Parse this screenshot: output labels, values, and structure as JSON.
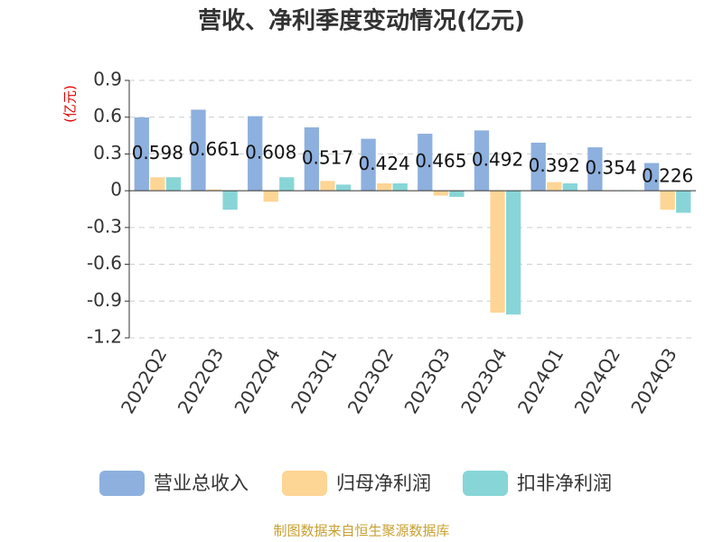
{
  "chart_data": {
    "type": "bar",
    "title": "营收、净利季度变动情况(亿元)",
    "y_label": "(亿元)",
    "source": "制图数据来自恒生聚源数据库",
    "categories": [
      "2022Q2",
      "2022Q3",
      "2022Q4",
      "2023Q1",
      "2023Q2",
      "2023Q3",
      "2023Q4",
      "2024Q1",
      "2024Q2",
      "2024Q3"
    ],
    "series": [
      {
        "name": "营业总收入",
        "color": "#8eb0de",
        "values": [
          0.598,
          0.661,
          0.608,
          0.517,
          0.424,
          0.465,
          0.492,
          0.392,
          0.354,
          0.226
        ],
        "show_labels": true
      },
      {
        "name": "归母净利润",
        "color": "#fdd595",
        "values": [
          0.11,
          0.01,
          -0.09,
          0.08,
          0.06,
          -0.04,
          -0.995,
          0.07,
          0.005,
          -0.155
        ],
        "show_labels": false
      },
      {
        "name": "扣非净利润",
        "color": "#88d5d7",
        "values": [
          0.11,
          -0.155,
          0.11,
          0.05,
          0.06,
          -0.05,
          -1.01,
          0.06,
          0.005,
          -0.18
        ],
        "show_labels": false
      }
    ],
    "ylim": [
      -1.2,
      0.9
    ],
    "yticks": [
      0.9,
      0.6,
      0.3,
      0,
      -0.3,
      -0.6,
      -0.9,
      -1.2
    ],
    "grid": true
  }
}
